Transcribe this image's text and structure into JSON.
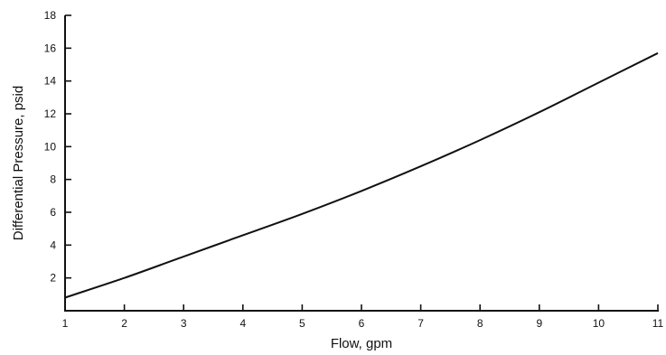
{
  "chart_data": {
    "type": "line",
    "title": "",
    "xlabel": "Flow, gpm",
    "ylabel": "Differential Pressure, psid",
    "xlim": [
      1,
      11
    ],
    "ylim": [
      0,
      18
    ],
    "x_ticks": [
      1,
      2,
      3,
      4,
      5,
      6,
      7,
      8,
      9,
      10,
      11
    ],
    "y_ticks": [
      2,
      4,
      6,
      8,
      10,
      12,
      14,
      16,
      18
    ],
    "grid": false,
    "legend": "none",
    "series": [
      {
        "x": [
          1,
          2,
          3,
          4,
          5,
          6,
          7,
          8,
          9,
          10,
          11
        ],
        "y": [
          0.8,
          2.0,
          3.3,
          4.6,
          5.9,
          7.3,
          8.8,
          10.4,
          12.1,
          13.9,
          15.7
        ]
      }
    ],
    "colors": {
      "line": "#111111",
      "axis": "#111111"
    }
  }
}
